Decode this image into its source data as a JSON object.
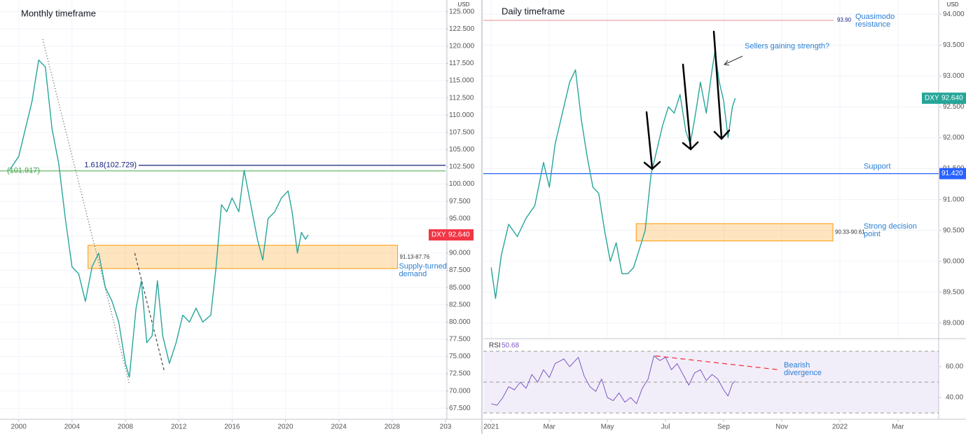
{
  "chart_data": [
    {
      "type": "line",
      "title": "Monthly timeframe",
      "unit": "USD",
      "color": "#26a69a",
      "x": [
        1999.3,
        2000.0,
        2000.5,
        2001.0,
        2001.5,
        2002.0,
        2002.5,
        2003.0,
        2003.5,
        2004.0,
        2004.5,
        2005.0,
        2005.5,
        2006.0,
        2006.5,
        2007.0,
        2007.5,
        2008.0,
        2008.3,
        2008.8,
        2009.2,
        2009.6,
        2010.0,
        2010.4,
        2010.8,
        2011.3,
        2011.8,
        2012.3,
        2012.8,
        2013.3,
        2013.8,
        2014.4,
        2014.8,
        2015.2,
        2015.6,
        2016.0,
        2016.5,
        2016.9,
        2017.4,
        2017.9,
        2018.3,
        2018.7,
        2019.2,
        2019.7,
        2020.2,
        2020.5,
        2020.9,
        2021.2,
        2021.5,
        2021.7
      ],
      "values": [
        102,
        104,
        108,
        112,
        118,
        117,
        108,
        103,
        95,
        88,
        87,
        83,
        88,
        90,
        85,
        83,
        80,
        74,
        72,
        82,
        86,
        77,
        78,
        86,
        78,
        74,
        77,
        81,
        80,
        82,
        80,
        81,
        88,
        97,
        96,
        98,
        96,
        102,
        97,
        92,
        89,
        95,
        96,
        98,
        99,
        96,
        90,
        93,
        92,
        92.64
      ],
      "xlim": [
        1998.6,
        2032
      ],
      "xticks": [
        2000,
        2004,
        2008,
        2012,
        2016,
        2020,
        2024,
        2028,
        {
          "value": 2032,
          "label": "203"
        }
      ],
      "ylim": [
        65.9,
        126.7
      ],
      "yticks": [
        {
          "value": 125,
          "label": "125.000"
        },
        {
          "value": 122.5,
          "label": "122.500"
        },
        {
          "value": 120,
          "label": "120.000"
        },
        {
          "value": 117.5,
          "label": "117.500"
        },
        {
          "value": 115,
          "label": "115.000"
        },
        {
          "value": 112.5,
          "label": "112.500"
        },
        {
          "value": 110,
          "label": "110.000"
        },
        {
          "value": 107.5,
          "label": "107.500"
        },
        {
          "value": 105,
          "label": "105.000"
        },
        {
          "value": 102.5,
          "label": "102.500"
        },
        {
          "value": 100,
          "label": "100.000"
        },
        {
          "value": 97.5,
          "label": "97.500"
        },
        {
          "value": 95,
          "label": "95.000"
        },
        {
          "value": 92.5,
          "label": "92.500"
        },
        {
          "value": 90,
          "label": "90.000"
        },
        {
          "value": 87.5,
          "label": "87.500"
        },
        {
          "value": 85,
          "label": "85.000"
        },
        {
          "value": 82.5,
          "label": "82.500"
        },
        {
          "value": 80,
          "label": "80.000"
        },
        {
          "value": 77.5,
          "label": "77.500"
        },
        {
          "value": 75,
          "label": "75.000"
        },
        {
          "value": 72.5,
          "label": "72.500"
        },
        {
          "value": 70,
          "label": "70.000"
        },
        {
          "value": 67.5,
          "label": "67.500"
        }
      ],
      "grid": true,
      "levels": [
        {
          "value": 102.729,
          "label": "1.618(102.729)",
          "color": "#1a237e"
        },
        {
          "value": 101.917,
          "label": "(101.917)",
          "color": "#66bb6a"
        }
      ],
      "zones": [
        {
          "low": 87.76,
          "high": 91.13,
          "x": [
            2005.2,
            2028.4
          ],
          "label": "91.13-87.76",
          "note": [
            "Supply-turned",
            "demand"
          ],
          "color": "#ff9800"
        }
      ],
      "trendlines": [
        {
          "x": [
            2001.8,
            2008.3
          ],
          "y": [
            121,
            71
          ],
          "color": "#555555",
          "dash": "1,3"
        },
        {
          "x": [
            2008.7,
            2010.9
          ],
          "y": [
            90,
            73
          ],
          "color": "#555555",
          "dash": "4,3"
        }
      ],
      "last": {
        "name": "DXY",
        "value": 92.64,
        "label": "92.640",
        "color": "#f23645"
      }
    },
    {
      "type": "line",
      "title": "Daily timeframe",
      "unit": "USD",
      "color": "#26a69a",
      "x": [
        0,
        0.15,
        0.35,
        0.6,
        0.9,
        1.2,
        1.5,
        1.8,
        2.0,
        2.2,
        2.5,
        2.7,
        2.9,
        3.1,
        3.3,
        3.5,
        3.7,
        3.9,
        4.1,
        4.3,
        4.5,
        4.7,
        4.9,
        5.1,
        5.3,
        5.5,
        5.7,
        5.9,
        6.1,
        6.3,
        6.5,
        6.7,
        6.85,
        7.0,
        7.2,
        7.4,
        7.6,
        7.7,
        7.85,
        8.0,
        8.15,
        8.3,
        8.4
      ],
      "values": [
        89.9,
        89.4,
        90.1,
        90.6,
        90.4,
        90.7,
        90.9,
        91.6,
        91.2,
        91.9,
        92.5,
        92.9,
        93.1,
        92.3,
        91.7,
        91.2,
        91.1,
        90.5,
        90.0,
        90.3,
        89.8,
        89.8,
        89.9,
        90.2,
        90.5,
        91.4,
        91.8,
        92.2,
        92.5,
        92.4,
        92.7,
        92.1,
        91.9,
        92.3,
        92.9,
        92.4,
        93.1,
        93.4,
        92.9,
        92.6,
        92.0,
        92.5,
        92.64
      ],
      "xlim": [
        -0.27,
        15.4
      ],
      "xticks": [
        {
          "value": 0,
          "label": "2021"
        },
        {
          "value": 2,
          "label": "Mar"
        },
        {
          "value": 4,
          "label": "May"
        },
        {
          "value": 6,
          "label": "Jul"
        },
        {
          "value": 8,
          "label": "Sep"
        },
        {
          "value": 10,
          "label": "Nov"
        },
        {
          "value": 12,
          "label": "2022"
        },
        {
          "value": 14,
          "label": "Mar"
        }
      ],
      "ylim": [
        88.76,
        94.23
      ],
      "yticks": [
        {
          "value": 94,
          "label": "94.000"
        },
        {
          "value": 93.5,
          "label": "93.500"
        },
        {
          "value": 93,
          "label": "93.000"
        },
        {
          "value": 92.5,
          "label": "92.500"
        },
        {
          "value": 92,
          "label": "92.000"
        },
        {
          "value": 91.5,
          "label": "91.500"
        },
        {
          "value": 91,
          "label": "91.000"
        },
        {
          "value": 90.5,
          "label": "90.500"
        },
        {
          "value": 90,
          "label": "90.000"
        },
        {
          "value": 89.5,
          "label": "89.500"
        },
        {
          "value": 89,
          "label": "89.000"
        }
      ],
      "grid": true,
      "levels": [
        {
          "value": 93.9,
          "label": "93.90",
          "note": [
            "Quasimodo",
            "resistance"
          ],
          "color": "#ef9a9a"
        },
        {
          "value": 91.42,
          "label": "Support",
          "tag": "91.420",
          "color": "#2962ff"
        }
      ],
      "zones": [
        {
          "low": 90.33,
          "high": 90.61,
          "x": [
            4.99,
            11.76
          ],
          "label": "90.33-90.61",
          "note": [
            "Strong decision",
            "point"
          ],
          "color": "#ff9800"
        }
      ],
      "annotations": [
        "Sellers gaining strength?"
      ],
      "last": {
        "name": "DXY",
        "value": 92.64,
        "label": "92.640",
        "color": "#26a69a"
      }
    },
    {
      "type": "line",
      "title": "RSI",
      "color": "#7e57c2",
      "x": [
        0,
        0.2,
        0.4,
        0.6,
        0.8,
        1.0,
        1.2,
        1.4,
        1.6,
        1.8,
        2.0,
        2.2,
        2.5,
        2.7,
        3.0,
        3.2,
        3.4,
        3.6,
        3.8,
        4.0,
        4.2,
        4.4,
        4.6,
        4.8,
        5.0,
        5.2,
        5.4,
        5.6,
        5.8,
        6.0,
        6.2,
        6.4,
        6.6,
        6.8,
        7.0,
        7.2,
        7.4,
        7.6,
        7.8,
        8.0,
        8.15,
        8.3,
        8.4
      ],
      "values": [
        36,
        35,
        40,
        47,
        45,
        50,
        46,
        55,
        50,
        58,
        53,
        62,
        65,
        60,
        66,
        54,
        47,
        44,
        52,
        40,
        38,
        43,
        37,
        40,
        36,
        46,
        52,
        67,
        64,
        66,
        58,
        62,
        55,
        48,
        56,
        58,
        51,
        55,
        52,
        45,
        41,
        49,
        50.68
      ],
      "xlim": [
        -0.27,
        15.4
      ],
      "ylim": [
        25.9,
        77.7
      ],
      "yticks": [
        {
          "value": 60,
          "label": "60.00"
        },
        {
          "value": 40,
          "label": "40.00"
        }
      ],
      "bands": [
        30,
        50,
        70
      ],
      "trendlines": [
        {
          "x": [
            5.65,
            9.9
          ],
          "y": [
            67,
            58
          ],
          "color": "#f23645",
          "dash": "7,5"
        }
      ],
      "annotations": [
        [
          "Bearish",
          "divergence"
        ]
      ]
    }
  ]
}
